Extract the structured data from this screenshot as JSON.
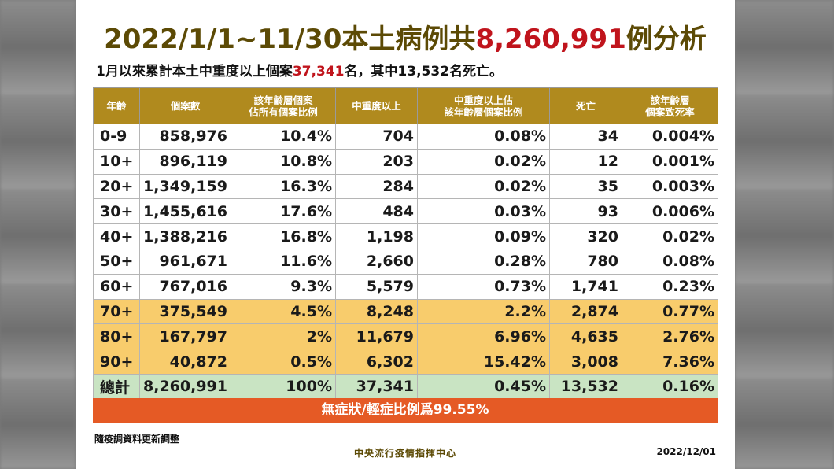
{
  "title": {
    "prefix": "2022/1/1~11/30本土病例共",
    "highlight": "8,260,991",
    "suffix": "例分析"
  },
  "subtitle": {
    "prefix": "1月以來累計本土中重度以上個案",
    "highlight": "37,341",
    "suffix": "名，其中13,532名死亡。"
  },
  "table": {
    "headers": [
      "年齡",
      "個案數",
      "該年齡層個案\n佔所有個案比例",
      "中重度以上",
      "中重度以上佔\n該年齡層個案比例",
      "死亡",
      "該年齡層\n個案致死率"
    ],
    "rows": [
      [
        "0-9",
        "858,976",
        "10.4%",
        "704",
        "0.08%",
        "34",
        "0.004%"
      ],
      [
        "10+",
        "896,119",
        "10.8%",
        "203",
        "0.02%",
        "12",
        "0.001%"
      ],
      [
        "20+",
        "1,349,159",
        "16.3%",
        "284",
        "0.02%",
        "35",
        "0.003%"
      ],
      [
        "30+",
        "1,455,616",
        "17.6%",
        "484",
        "0.03%",
        "93",
        "0.006%"
      ],
      [
        "40+",
        "1,388,216",
        "16.8%",
        "1,198",
        "0.09%",
        "320",
        "0.02%"
      ],
      [
        "50+",
        "961,671",
        "11.6%",
        "2,660",
        "0.28%",
        "780",
        "0.08%"
      ],
      [
        "60+",
        "767,016",
        "9.3%",
        "5,579",
        "0.73%",
        "1,741",
        "0.23%"
      ],
      [
        "70+",
        "375,549",
        "4.5%",
        "8,248",
        "2.2%",
        "2,874",
        "0.77%"
      ],
      [
        "80+",
        "167,797",
        "2%",
        "11,679",
        "6.96%",
        "4,635",
        "2.76%"
      ],
      [
        "90+",
        "40,872",
        "0.5%",
        "6,302",
        "15.42%",
        "3,008",
        "7.36%"
      ]
    ],
    "total": [
      "總計",
      "8,260,991",
      "100%",
      "37,341",
      "0.45%",
      "13,532",
      "0.16%"
    ]
  },
  "banner": "無症狀/輕症比例爲99.55%",
  "footer": {
    "note": "隨疫調資料更新調整",
    "agency": "中央流行疫情指揮中心",
    "date": "2022/12/01"
  },
  "colors": {
    "header_bg": "#b08a1e",
    "title": "#5c4a05",
    "highlight": "#c0141c",
    "elderly_rows": "#f8cc6c",
    "total_row": "#c9e4c3",
    "banner": "#e55a25"
  }
}
